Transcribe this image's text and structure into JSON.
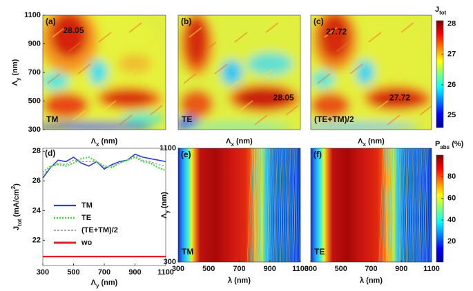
{
  "chart_data": [
    {
      "type": "heatmap",
      "panel_label": "(a)",
      "mode_label": "TM",
      "max_labels": [
        28.05
      ],
      "xlabel": [
        "Λ",
        "x",
        " (nm)"
      ],
      "ylabel": [
        "Λ",
        "y",
        " (nm)"
      ],
      "xlim": [
        300,
        1100
      ],
      "ylim": [
        300,
        1100
      ],
      "yticks": [
        300,
        500,
        700,
        900,
        1100
      ]
    },
    {
      "type": "heatmap",
      "panel_label": "(b)",
      "mode_label": "TE",
      "max_labels": [
        28.05
      ],
      "xlabel": [
        "Λ",
        "x",
        " (nm)"
      ],
      "xlim": [
        300,
        1100
      ],
      "ylim": [
        300,
        1100
      ]
    },
    {
      "type": "heatmap",
      "panel_label": "(c)",
      "mode_label": "(TE+TM)/2",
      "max_labels": [
        27.72,
        27.72
      ],
      "xlabel": [
        "Λ",
        "x",
        " (nm)"
      ],
      "xlim": [
        300,
        1100
      ],
      "ylim": [
        300,
        1100
      ],
      "colorbar": {
        "title": [
          "J",
          "tot"
        ],
        "lim": [
          24.6,
          28.1
        ],
        "ticks": [
          25,
          26,
          27,
          28
        ]
      }
    },
    {
      "type": "line",
      "panel_label": "(d)",
      "xlabel": [
        "Λ",
        "y",
        " (nm)"
      ],
      "ylabel": [
        "J",
        "tot",
        " (mA/cm",
        "2",
        ")"
      ],
      "x": [
        300,
        350,
        400,
        450,
        500,
        550,
        600,
        650,
        700,
        750,
        800,
        850,
        900,
        950,
        1000,
        1050,
        1100
      ],
      "series": [
        {
          "name": "TM",
          "color": "#2b3fc8",
          "values": [
            26.2,
            26.9,
            27.4,
            27.3,
            27.6,
            27.2,
            27.0,
            27.3,
            26.8,
            27.1,
            27.3,
            27.4,
            27.8,
            27.6,
            27.5,
            27.4,
            27.3
          ]
        },
        {
          "name": "TE",
          "color": "#3ddc3d",
          "values": [
            26.6,
            27.0,
            27.1,
            27.0,
            27.2,
            27.5,
            27.6,
            27.3,
            27.0,
            26.9,
            27.2,
            27.4,
            27.6,
            27.3,
            27.2,
            26.9,
            26.7
          ]
        },
        {
          "name": "(TE+TM)/2",
          "color": "#999999",
          "values": [
            26.4,
            26.9,
            27.2,
            27.1,
            27.4,
            27.3,
            27.3,
            27.3,
            26.9,
            27.0,
            27.2,
            27.4,
            27.7,
            27.4,
            27.3,
            27.1,
            27.0
          ]
        },
        {
          "name": "wo",
          "color": "#e02020",
          "values": [
            20.9,
            20.9,
            20.9,
            20.9,
            20.9,
            20.9,
            20.9,
            20.9,
            20.9,
            20.9,
            20.9,
            20.9,
            20.9,
            20.9,
            20.9,
            20.9,
            20.9
          ]
        }
      ],
      "xlim": [
        300,
        1100
      ],
      "ylim": [
        20.3,
        28.2
      ],
      "xticks": [
        300,
        500,
        700,
        900,
        1100
      ],
      "yticks": [
        22,
        24,
        26,
        28
      ],
      "legend": "center-left"
    },
    {
      "type": "heatmap",
      "panel_label": "(e)",
      "mode_label": "TM",
      "xlabel": [
        "λ (nm)"
      ],
      "ylabel": [
        "Λ",
        "y",
        " (nm)"
      ],
      "xlim": [
        300,
        1100
      ],
      "ylim": [
        300,
        1100
      ],
      "xticks": [
        300,
        500,
        700,
        900,
        1100
      ],
      "yticks": [
        300,
        1100
      ]
    },
    {
      "type": "heatmap",
      "panel_label": "(f)",
      "mode_label": "TE",
      "xlabel": [
        "λ (nm)"
      ],
      "xlim": [
        300,
        1100
      ],
      "ylim": [
        300,
        1100
      ],
      "xticks": [
        300,
        500,
        700,
        900,
        1100
      ],
      "colorbar": {
        "title": [
          "P",
          "abs",
          " (%)"
        ],
        "lim": [
          1,
          100
        ],
        "ticks": [
          20,
          40,
          60,
          80
        ]
      }
    }
  ]
}
